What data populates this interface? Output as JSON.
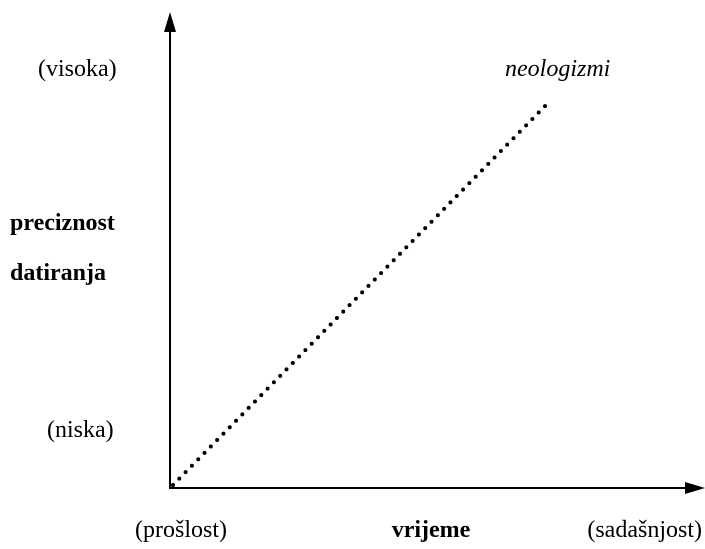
{
  "y_axis": {
    "label": [
      "preciznost",
      "datiranja"
    ],
    "high": "(visoka)",
    "low": "(niska)"
  },
  "x_axis": {
    "label": "vrijeme",
    "start": "(prošlost)",
    "end": "(sadašnjost)"
  },
  "line_label": "neologizmi"
}
